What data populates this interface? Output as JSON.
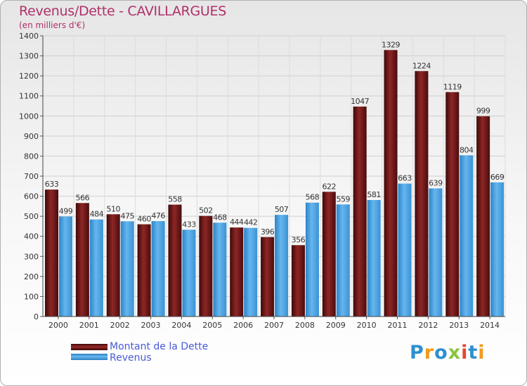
{
  "header": {
    "title": "Revenus/Dette - CAVILLARGUES",
    "subtitle": "(en milliers d'€)"
  },
  "legend": {
    "debt_label": "Montant de la Dette",
    "revenue_label": "Revenus"
  },
  "logo": {
    "text": "Proxiti"
  },
  "colors": {
    "debt": "#7a1d1d",
    "revenue": "#4fa6e6",
    "title": "#b0306a",
    "legend_text": "#4a5ad8"
  },
  "chart_data": {
    "type": "bar",
    "title": "Revenus/Dette - CAVILLARGUES",
    "ylabel": "(en milliers d'€)",
    "categories": [
      "2000",
      "2001",
      "2002",
      "2003",
      "2004",
      "2005",
      "2006",
      "2007",
      "2008",
      "2009",
      "2010",
      "2011",
      "2012",
      "2013",
      "2014"
    ],
    "series": [
      {
        "name": "Montant de la Dette",
        "values": [
          633,
          566,
          510,
          460,
          558,
          502,
          444,
          396,
          356,
          622,
          1047,
          1329,
          1224,
          1119,
          999
        ]
      },
      {
        "name": "Revenus",
        "values": [
          499,
          484,
          475,
          476,
          433,
          468,
          442,
          507,
          568,
          559,
          581,
          663,
          639,
          804,
          669
        ]
      }
    ],
    "ylim": [
      0,
      1400
    ],
    "yticks": [
      0,
      100,
      200,
      300,
      400,
      500,
      600,
      700,
      800,
      900,
      1000,
      1100,
      1200,
      1300,
      1400
    ],
    "grid": true,
    "legend_position": "bottom-left"
  }
}
